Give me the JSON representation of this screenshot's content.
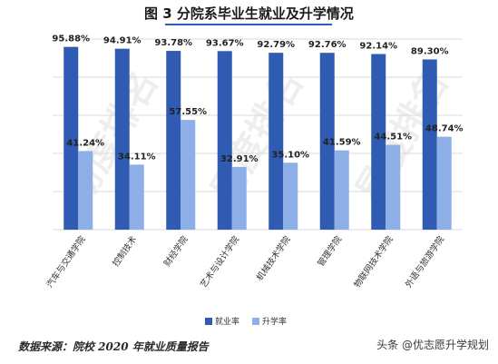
{
  "title": "图 3  分院系毕业生就业及升学情况",
  "source_note": "数据来源：院校 2020 年就业质量报告",
  "credit": "头条 @优志愿升学规划",
  "watermark": "易度排名",
  "colors": {
    "employment": "#2f5bb3",
    "further_study": "#8eaee8",
    "grid": "#d9d9d9"
  },
  "chart_data": {
    "type": "bar",
    "categories": [
      "汽车与交通学院",
      "控制技术",
      "财经学院",
      "艺术与设计学院",
      "机械技术学院",
      "管理学院",
      "物联网技术学院",
      "外语与旅游学院"
    ],
    "series": [
      {
        "name": "就业率",
        "values": [
          95.88,
          94.91,
          93.78,
          93.67,
          92.79,
          92.76,
          92.14,
          89.3
        ],
        "labels": [
          "95.88%",
          "94.91%",
          "93.78%",
          "93.67%",
          "92.79%",
          "92.76%",
          "92.14%",
          "89.30%"
        ]
      },
      {
        "name": "升学率",
        "values": [
          41.24,
          34.11,
          57.55,
          32.91,
          35.1,
          41.59,
          44.51,
          48.74
        ],
        "labels": [
          "41.24%",
          "34.11%",
          "57.55%",
          "32.91%",
          "35.10%",
          "41.59%",
          "44.51%",
          "48.74%"
        ]
      }
    ],
    "ylim": [
      0,
      100
    ],
    "grid": true,
    "legend": "bottom"
  }
}
